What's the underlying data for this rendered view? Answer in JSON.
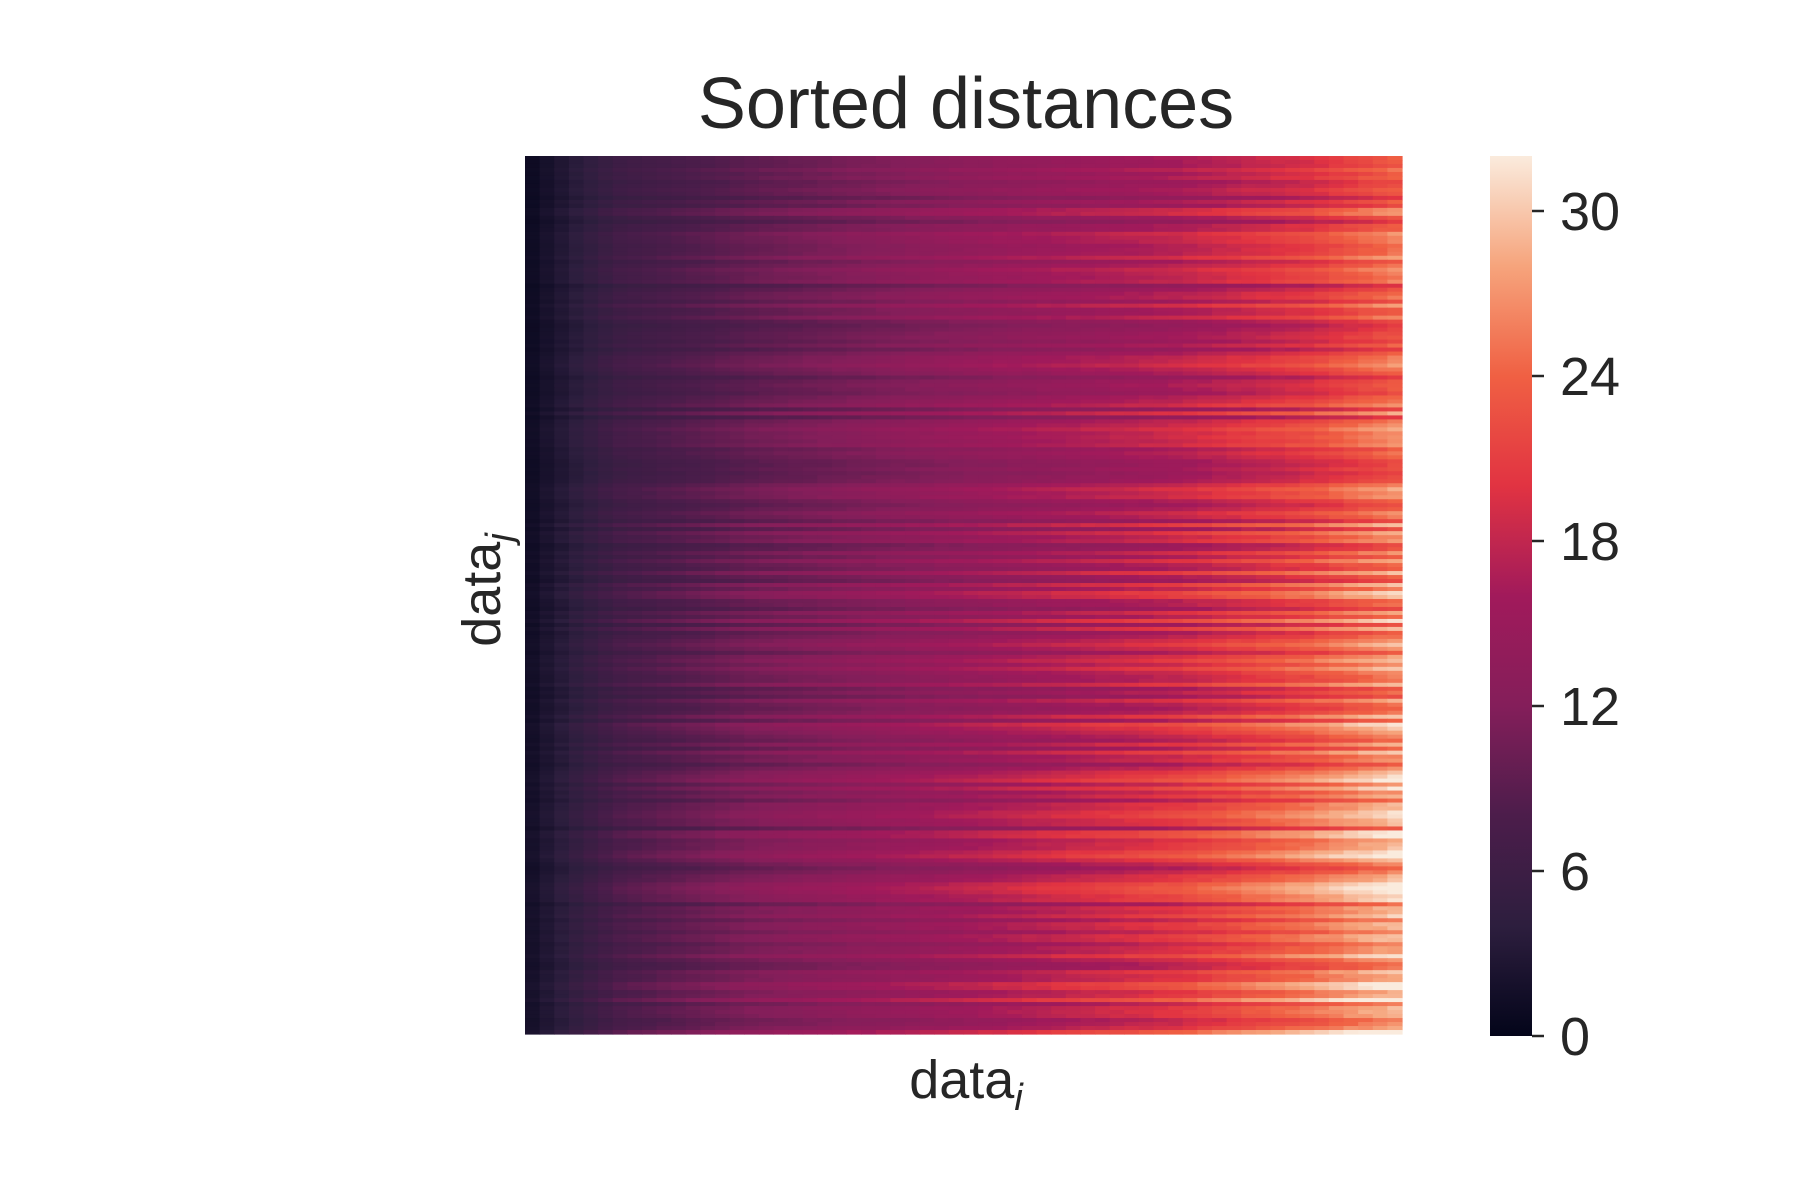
{
  "chart_data": {
    "type": "heatmap",
    "title": "Sorted distances",
    "xlabel": {
      "base": "data",
      "sub": "i"
    },
    "ylabel": {
      "base": "data",
      "sub": "j"
    },
    "xticks": [],
    "yticks": [],
    "colormap": "rocket",
    "colorbar": {
      "min": 0,
      "max": 32,
      "ticks": [
        0,
        6,
        12,
        18,
        24,
        30
      ],
      "tick_labels": [
        "0",
        "6",
        "12",
        "18",
        "24",
        "30"
      ]
    },
    "rows_sorted_ascending": true,
    "approx_row_profile": {
      "x_fraction": [
        0.0,
        0.1,
        0.25,
        0.5,
        0.75,
        0.9,
        1.0
      ],
      "typical_top_rows": [
        1,
        6,
        9,
        13,
        16,
        19,
        23
      ],
      "typical_bottom_rows": [
        2,
        8,
        12,
        16,
        21,
        26,
        30
      ]
    }
  }
}
